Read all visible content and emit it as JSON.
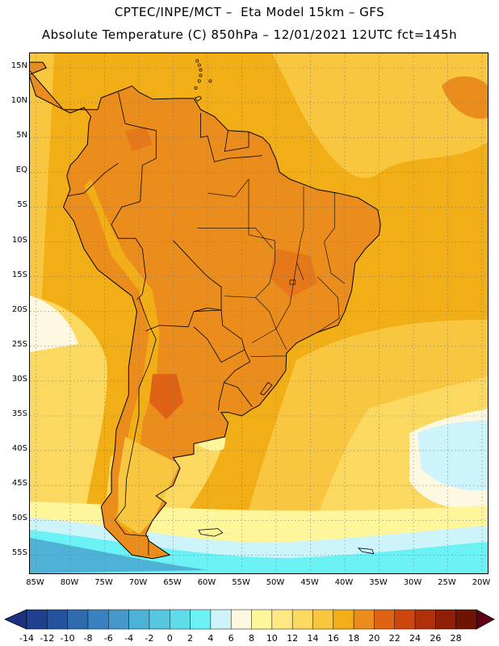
{
  "header": {
    "line1": "CPTEC/INPE/MCT –  Eta Model 15km – GFS",
    "line2": "Absolute Temperature (C) 850hPa – 12/01/2021 12UTC fct=145h"
  },
  "axes": {
    "lat_labels": [
      "15N",
      "10N",
      "5N",
      "EQ",
      "5S",
      "10S",
      "15S",
      "20S",
      "25S",
      "30S",
      "35S",
      "40S",
      "45S",
      "50S",
      "55S"
    ],
    "lon_labels": [
      "85W",
      "80W",
      "75W",
      "70W",
      "65W",
      "60W",
      "55W",
      "50W",
      "45W",
      "40W",
      "35W",
      "30W",
      "25W",
      "20W"
    ]
  },
  "colorbar": {
    "labels": [
      "-14",
      "-12",
      "-10",
      "-8",
      "-6",
      "-4",
      "-2",
      "0",
      "2",
      "4",
      "6",
      "8",
      "10",
      "12",
      "14",
      "16",
      "18",
      "20",
      "22",
      "24",
      "26",
      "28"
    ],
    "colors": [
      "#1f3f8f",
      "#24539e",
      "#2f6aae",
      "#3a82bf",
      "#4598c9",
      "#4eb1d6",
      "#57c6e0",
      "#5fdce9",
      "#6cf2f4",
      "#cdf4fa",
      "#fff8e0",
      "#fff59a",
      "#fde884",
      "#fbd860",
      "#f8c63f",
      "#f2ae16",
      "#eb8d1c",
      "#e06214",
      "#cc470e",
      "#b0300a",
      "#8f1f06",
      "#6e1405"
    ],
    "under_color": "#1d2f80",
    "over_color": "#5c0212"
  },
  "field_colors": {
    "ocean_warm": "#f2ae16",
    "ocean_mild": "#f8c63f",
    "land_hot": "#eb8d1c",
    "land_hotspot": "#e06214",
    "cool_yellow": "#fbd860",
    "pale": "#fff59a",
    "cream": "#fff8e0",
    "ice": "#cdf4fa",
    "cyan": "#6cf2f4",
    "blue_cold": "#4eb1d6"
  }
}
